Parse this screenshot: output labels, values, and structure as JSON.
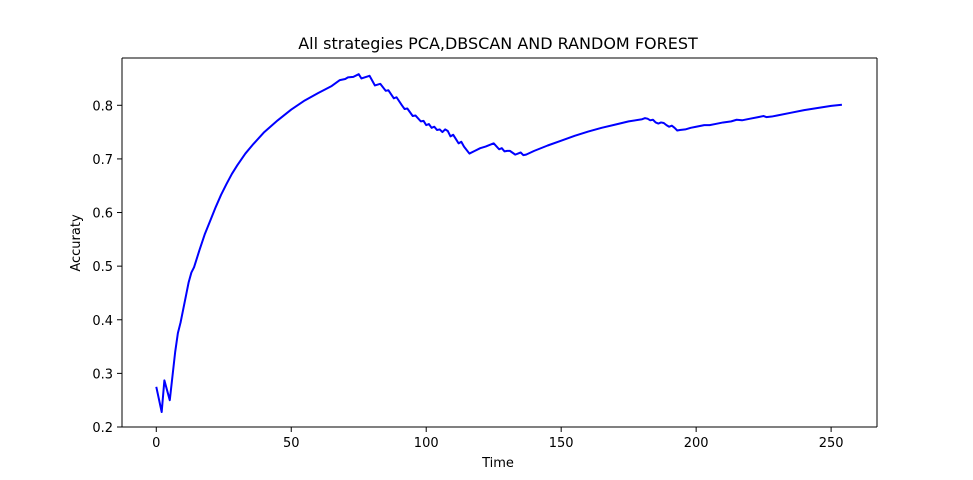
{
  "chart_data": {
    "type": "line",
    "title": "All strategies PCA,DBSCAN AND RANDOM FOREST",
    "xlabel": "Time",
    "ylabel": "Accuraty",
    "xlim": [
      -12.7,
      267.0
    ],
    "ylim": [
      0.2,
      0.8882
    ],
    "xticks": [
      0,
      50,
      100,
      150,
      200,
      250
    ],
    "yticks": [
      0.2,
      0.3,
      0.4,
      0.5,
      0.6,
      0.7,
      0.8
    ],
    "ytick_labels": [
      "0.2",
      "0.3",
      "0.4",
      "0.5",
      "0.6",
      "0.7",
      "0.8"
    ],
    "grid": false,
    "series": [
      {
        "color": "#0000ff",
        "points": [
          [
            0,
            0.275
          ],
          [
            2,
            0.228
          ],
          [
            3,
            0.287
          ],
          [
            5,
            0.25
          ],
          [
            6,
            0.295
          ],
          [
            7,
            0.34
          ],
          [
            8,
            0.375
          ],
          [
            9,
            0.395
          ],
          [
            10,
            0.42
          ],
          [
            11,
            0.445
          ],
          [
            12,
            0.47
          ],
          [
            13,
            0.488
          ],
          [
            14,
            0.498
          ],
          [
            16,
            0.53
          ],
          [
            18,
            0.56
          ],
          [
            20,
            0.585
          ],
          [
            22,
            0.61
          ],
          [
            24,
            0.633
          ],
          [
            26,
            0.653
          ],
          [
            28,
            0.672
          ],
          [
            30,
            0.688
          ],
          [
            33,
            0.71
          ],
          [
            36,
            0.728
          ],
          [
            40,
            0.75
          ],
          [
            45,
            0.772
          ],
          [
            50,
            0.792
          ],
          [
            55,
            0.809
          ],
          [
            60,
            0.823
          ],
          [
            65,
            0.836
          ],
          [
            68,
            0.847
          ],
          [
            70,
            0.849
          ],
          [
            71,
            0.852
          ],
          [
            73,
            0.853
          ],
          [
            75,
            0.858
          ],
          [
            76,
            0.85
          ],
          [
            79,
            0.855
          ],
          [
            81,
            0.837
          ],
          [
            83,
            0.84
          ],
          [
            85,
            0.827
          ],
          [
            86,
            0.828
          ],
          [
            88,
            0.813
          ],
          [
            89,
            0.815
          ],
          [
            91,
            0.8
          ],
          [
            92,
            0.793
          ],
          [
            93,
            0.794
          ],
          [
            95,
            0.78
          ],
          [
            96,
            0.781
          ],
          [
            98,
            0.77
          ],
          [
            99,
            0.771
          ],
          [
            100,
            0.763
          ],
          [
            101,
            0.765
          ],
          [
            102,
            0.758
          ],
          [
            103,
            0.76
          ],
          [
            104,
            0.754
          ],
          [
            105,
            0.755
          ],
          [
            106,
            0.75
          ],
          [
            107,
            0.755
          ],
          [
            108,
            0.752
          ],
          [
            109,
            0.742
          ],
          [
            110,
            0.745
          ],
          [
            111,
            0.737
          ],
          [
            112,
            0.729
          ],
          [
            113,
            0.732
          ],
          [
            114,
            0.723
          ],
          [
            116,
            0.71
          ],
          [
            118,
            0.715
          ],
          [
            120,
            0.72
          ],
          [
            122,
            0.723
          ],
          [
            125,
            0.729
          ],
          [
            127,
            0.718
          ],
          [
            128,
            0.72
          ],
          [
            129,
            0.714
          ],
          [
            130,
            0.715
          ],
          [
            131,
            0.715
          ],
          [
            133,
            0.708
          ],
          [
            134,
            0.71
          ],
          [
            135,
            0.712
          ],
          [
            136,
            0.707
          ],
          [
            137,
            0.708
          ],
          [
            140,
            0.715
          ],
          [
            145,
            0.725
          ],
          [
            150,
            0.734
          ],
          [
            155,
            0.743
          ],
          [
            160,
            0.751
          ],
          [
            165,
            0.758
          ],
          [
            170,
            0.764
          ],
          [
            175,
            0.77
          ],
          [
            180,
            0.774
          ],
          [
            181,
            0.776
          ],
          [
            182,
            0.775
          ],
          [
            183,
            0.772
          ],
          [
            184,
            0.773
          ],
          [
            185,
            0.768
          ],
          [
            186,
            0.766
          ],
          [
            187,
            0.768
          ],
          [
            188,
            0.767
          ],
          [
            189,
            0.763
          ],
          [
            190,
            0.76
          ],
          [
            191,
            0.762
          ],
          [
            192,
            0.758
          ],
          [
            193,
            0.753
          ],
          [
            194,
            0.754
          ],
          [
            196,
            0.755
          ],
          [
            198,
            0.758
          ],
          [
            200,
            0.76
          ],
          [
            203,
            0.763
          ],
          [
            205,
            0.763
          ],
          [
            207,
            0.765
          ],
          [
            210,
            0.768
          ],
          [
            213,
            0.77
          ],
          [
            215,
            0.773
          ],
          [
            217,
            0.772
          ],
          [
            220,
            0.775
          ],
          [
            223,
            0.778
          ],
          [
            225,
            0.78
          ],
          [
            226,
            0.778
          ],
          [
            228,
            0.779
          ],
          [
            230,
            0.781
          ],
          [
            235,
            0.786
          ],
          [
            240,
            0.791
          ],
          [
            245,
            0.795
          ],
          [
            250,
            0.799
          ],
          [
            254,
            0.801
          ]
        ]
      }
    ]
  }
}
